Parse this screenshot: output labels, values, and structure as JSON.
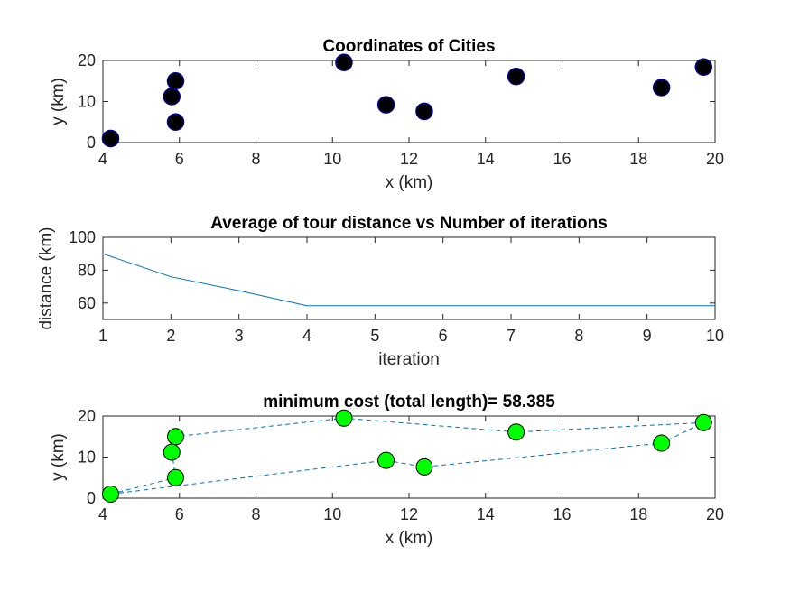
{
  "chart_data": [
    {
      "type": "scatter",
      "title": "Coordinates of Cities",
      "xlabel": "x  (km)",
      "ylabel": "y  (km)",
      "xlim": [
        4,
        20
      ],
      "ylim": [
        0,
        20
      ],
      "xticks": [
        4,
        6,
        8,
        10,
        12,
        14,
        16,
        18,
        20
      ],
      "yticks": [
        0,
        10,
        20
      ],
      "grid": false,
      "marker_color": "#000000",
      "marker_edge": "#00008b",
      "points": [
        {
          "x": 4.2,
          "y": 1.0
        },
        {
          "x": 5.8,
          "y": 11.2
        },
        {
          "x": 5.9,
          "y": 15.0
        },
        {
          "x": 5.9,
          "y": 5.0
        },
        {
          "x": 10.3,
          "y": 19.5
        },
        {
          "x": 11.4,
          "y": 9.2
        },
        {
          "x": 12.4,
          "y": 7.6
        },
        {
          "x": 14.8,
          "y": 16.1
        },
        {
          "x": 18.6,
          "y": 13.4
        },
        {
          "x": 19.7,
          "y": 18.4
        }
      ]
    },
    {
      "type": "line",
      "title": "Average of tour distance vs Number of iterations",
      "xlabel": "iteration",
      "ylabel": "distance (km)",
      "xlim": [
        1,
        10
      ],
      "ylim": [
        50,
        100
      ],
      "xticks": [
        1,
        2,
        3,
        4,
        5,
        6,
        7,
        8,
        9,
        10
      ],
      "yticks": [
        60,
        80,
        100
      ],
      "grid": false,
      "line_color": "#0072bd",
      "x": [
        1,
        2,
        3,
        4,
        5,
        6,
        7,
        8,
        9,
        10
      ],
      "y": [
        90,
        76,
        67.5,
        58.385,
        58.385,
        58.385,
        58.385,
        58.385,
        58.385,
        58.385
      ]
    },
    {
      "type": "line",
      "title": "minimum cost (total length)= 58.385",
      "xlabel": "x (km)",
      "ylabel": "y (km)",
      "xlim": [
        4,
        20
      ],
      "ylim": [
        0,
        20
      ],
      "xticks": [
        4,
        6,
        8,
        10,
        12,
        14,
        16,
        18,
        20
      ],
      "yticks": [
        0,
        10,
        20
      ],
      "grid": false,
      "line_style": "dashed",
      "line_color": "#0072bd",
      "marker_color": "#00ff00",
      "marker_edge": "#000000",
      "tour": [
        {
          "x": 4.2,
          "y": 1.0
        },
        {
          "x": 5.9,
          "y": 5.0
        },
        {
          "x": 5.8,
          "y": 11.2
        },
        {
          "x": 5.9,
          "y": 15.0
        },
        {
          "x": 10.3,
          "y": 19.5
        },
        {
          "x": 14.8,
          "y": 16.1
        },
        {
          "x": 19.7,
          "y": 18.4
        },
        {
          "x": 18.6,
          "y": 13.4
        },
        {
          "x": 12.4,
          "y": 7.6
        },
        {
          "x": 11.4,
          "y": 9.2
        },
        {
          "x": 4.2,
          "y": 1.0
        }
      ]
    }
  ]
}
